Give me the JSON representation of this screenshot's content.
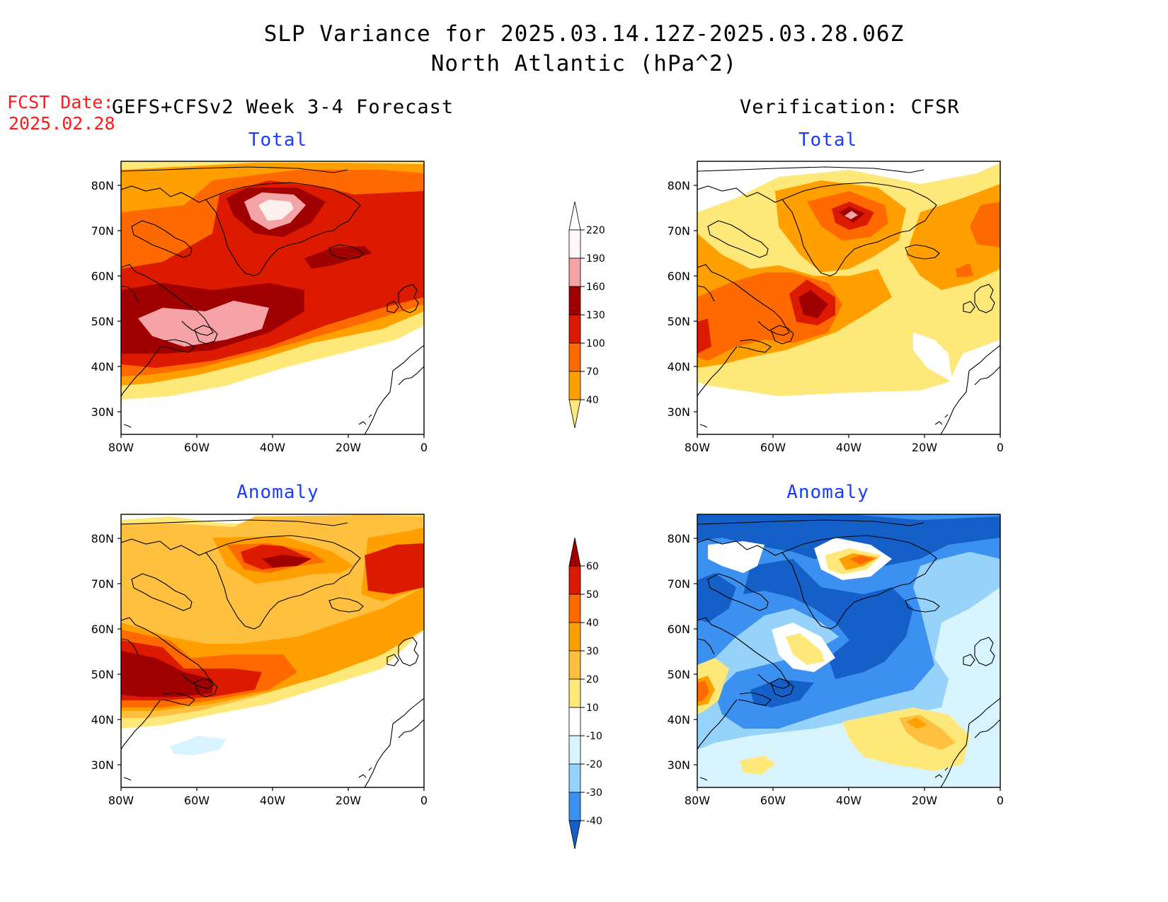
{
  "title": {
    "line1": "SLP Variance for 2025.03.14.12Z-2025.03.28.06Z",
    "line2": "North Atlantic (hPa^2)"
  },
  "fcst": {
    "label": "FCST Date:",
    "date": "2025.02.28"
  },
  "headers": {
    "forecast": "GEFS+CFSv2 Week 3-4 Forecast",
    "verification": "Verification: CFSR"
  },
  "panels": {
    "fc_total": "Total",
    "obs_total": "Total",
    "fc_anom": "Anomaly",
    "obs_anom": "Anomaly"
  },
  "axes": {
    "lat_ticks": [
      "80N",
      "70N",
      "60N",
      "50N",
      "40N",
      "30N"
    ],
    "lon_ticks": [
      "80W",
      "60W",
      "40W",
      "20W",
      "0"
    ]
  },
  "colorbar_total": {
    "levels": [
      "220",
      "190",
      "160",
      "130",
      "100",
      "70",
      "40"
    ],
    "colors": [
      "#ffffff",
      "#fff7f7",
      "#f5a3a7",
      "#a00000",
      "#dc1a00",
      "#ff6a00",
      "#ffa000",
      "#ffe87a"
    ]
  },
  "colorbar_anomaly": {
    "levels": [
      "60",
      "50",
      "40",
      "30",
      "20",
      "10",
      "-10",
      "-20",
      "-30",
      "-40"
    ],
    "colors": [
      "#a00000",
      "#dc1a00",
      "#ff6a00",
      "#ffa000",
      "#ffc040",
      "#ffe87a",
      "#ffffff",
      "#d8f4ff",
      "#96d2fa",
      "#3c90f0",
      "#1460c8"
    ]
  },
  "colors": {
    "fcst_label": "#ff1a1a",
    "panel_titles": "#1a3cff"
  }
}
